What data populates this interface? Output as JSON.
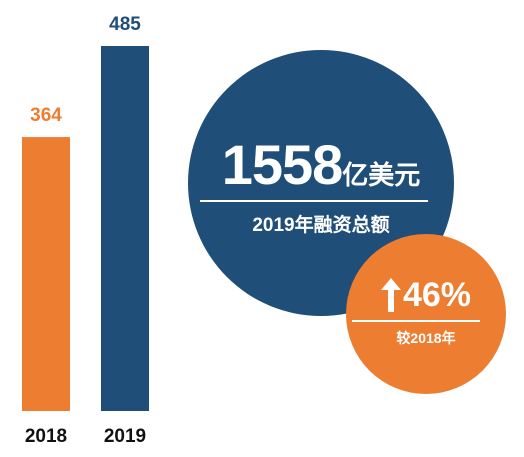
{
  "chart_data": {
    "type": "bar",
    "categories": [
      "2018",
      "2019"
    ],
    "values": [
      364,
      485
    ],
    "ylim": [
      0,
      485
    ],
    "grid": false,
    "colors": [
      "#ed7d31",
      "#1f4e79"
    ]
  },
  "total": {
    "amount": "1558",
    "unit": "亿美元",
    "label": "2019年融资总额",
    "color": "#1f4e79"
  },
  "growth": {
    "value": "46%",
    "icon": "arrow-up-icon",
    "label": "较2018年",
    "color": "#ed7d31"
  }
}
